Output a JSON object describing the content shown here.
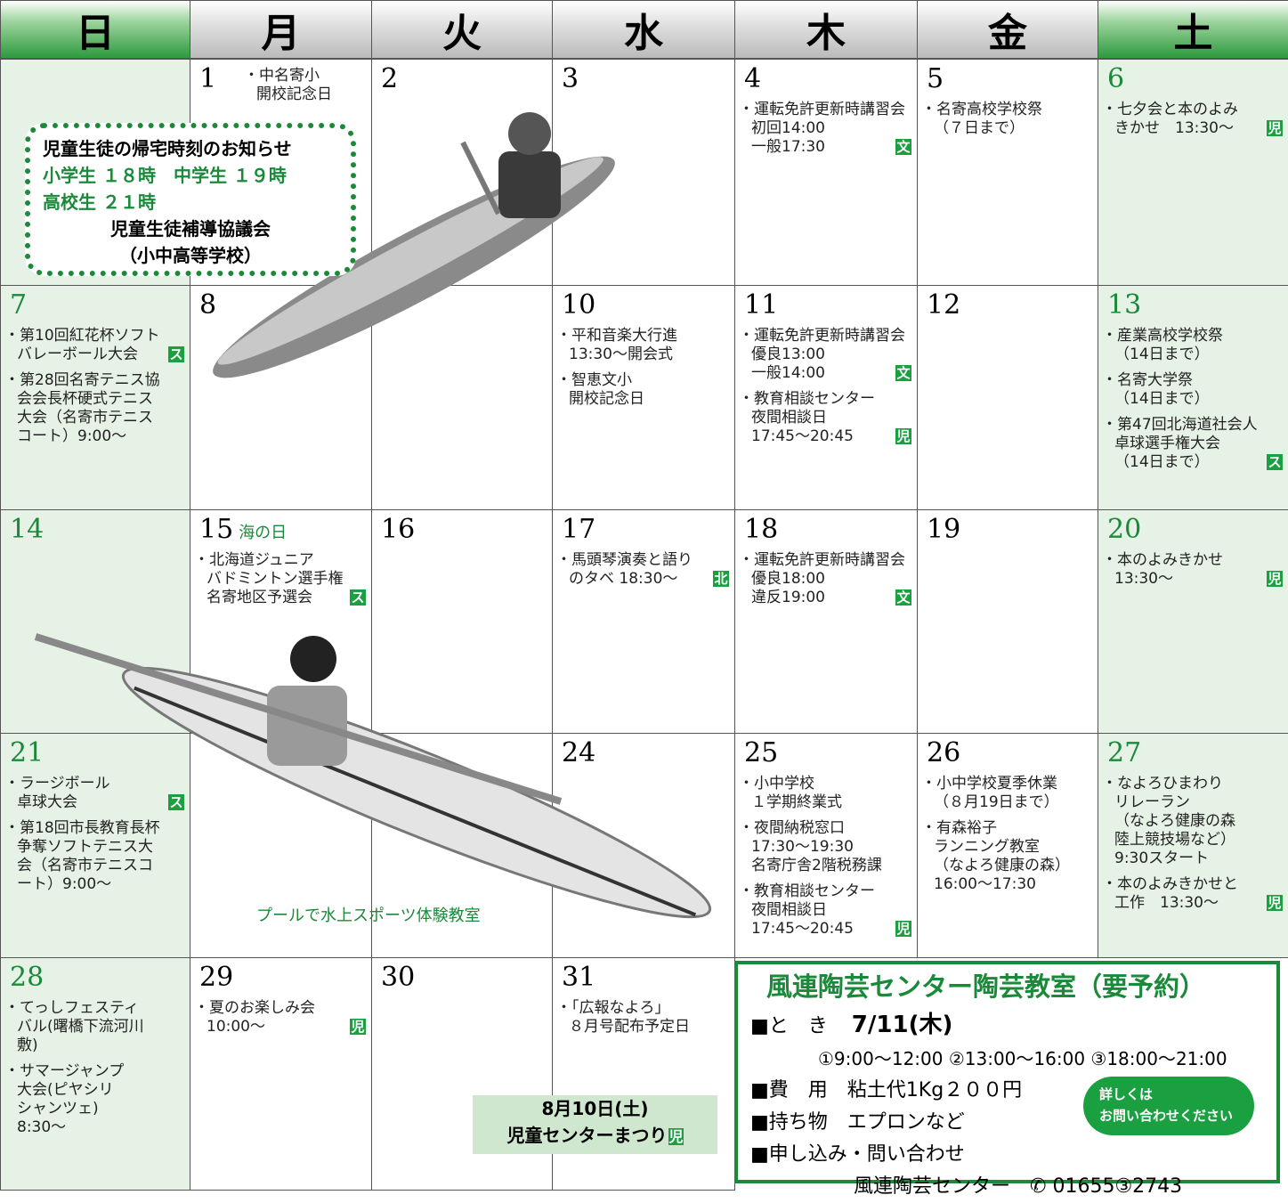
{
  "header": {
    "days": [
      "日",
      "月",
      "火",
      "水",
      "木",
      "金",
      "土"
    ]
  },
  "weeks": [
    [
      null,
      {
        "day": 1,
        "events": [
          {
            "lines": [
              "・中名寄小",
              "開校記念日"
            ]
          }
        ]
      },
      {
        "day": 2
      },
      {
        "day": 3
      },
      {
        "day": 4,
        "events": [
          {
            "lines": [
              "・運転免許更新時講習会",
              "初回14:00",
              "一般17:30"
            ],
            "tag": "文"
          }
        ]
      },
      {
        "day": 5,
        "events": [
          {
            "lines": [
              "・名寄高校学校祭",
              "（７日まで）"
            ]
          }
        ]
      },
      {
        "day": 6,
        "events": [
          {
            "lines": [
              "・七夕会と本のよみ",
              "きかせ　13:30～"
            ],
            "tag": "児"
          }
        ]
      }
    ],
    [
      {
        "day": 7,
        "events": [
          {
            "lines": [
              "・第10回紅花杯ソフト",
              "バレーボール大会"
            ],
            "tag": "ス"
          },
          {
            "lines": [
              "・第28回名寄テニス協",
              "会会長杯硬式テニス",
              "大会（名寄市テニス",
              "コート）9:00～"
            ]
          }
        ]
      },
      {
        "day": 8
      },
      null,
      {
        "day": 10,
        "events": [
          {
            "lines": [
              "・平和音楽大行進",
              "13:30～開会式"
            ]
          },
          {
            "lines": [
              "・智恵文小",
              "開校記念日"
            ]
          }
        ]
      },
      {
        "day": 11,
        "events": [
          {
            "lines": [
              "・運転免許更新時講習会",
              "優良13:00",
              "一般14:00"
            ],
            "tag": "文"
          },
          {
            "lines": [
              "・教育相談センター",
              "夜間相談日",
              "17:45～20:45"
            ],
            "tag": "児"
          }
        ]
      },
      {
        "day": 12
      },
      {
        "day": 13,
        "events": [
          {
            "lines": [
              "・産業高校学校祭",
              "（14日まで）"
            ]
          },
          {
            "lines": [
              "・名寄大学祭",
              "（14日まで）"
            ]
          },
          {
            "lines": [
              "・第47回北海道社会人",
              "卓球選手権大会",
              "（14日まで）"
            ],
            "tag": "ス"
          }
        ]
      }
    ],
    [
      {
        "day": 14
      },
      {
        "day": 15,
        "note": "海の日",
        "events": [
          {
            "lines": [
              "・北海道ジュニア",
              "バドミントン選手権",
              "名寄地区予選会"
            ],
            "tag": "ス"
          }
        ]
      },
      {
        "day": 16
      },
      {
        "day": 17,
        "events": [
          {
            "lines": [
              "・馬頭琴演奏と語り",
              "のタベ 18:30～"
            ],
            "tag": "北"
          }
        ]
      },
      {
        "day": 18,
        "events": [
          {
            "lines": [
              "・運転免許更新時講習会",
              "優良18:00",
              "違反19:00"
            ],
            "tag": "文"
          }
        ]
      },
      {
        "day": 19
      },
      {
        "day": 20,
        "events": [
          {
            "lines": [
              "・本のよみきかせ",
              "13:30～"
            ],
            "tag": "児"
          }
        ]
      }
    ],
    [
      {
        "day": 21,
        "events": [
          {
            "lines": [
              "・ラージボール",
              "卓球大会"
            ],
            "tag": "ス"
          },
          {
            "lines": [
              "・第18回市長教育長杯",
              "争奪ソフトテニス大",
              "会（名寄市テニスコ",
              "ート）9:00～"
            ]
          }
        ]
      },
      null,
      null,
      {
        "day": 24
      },
      {
        "day": 25,
        "events": [
          {
            "lines": [
              "・小中学校",
              "１学期終業式"
            ]
          },
          {
            "lines": [
              "・夜間納税窓口",
              "17:30～19:30",
              "名寄庁舎2階税務課"
            ]
          },
          {
            "lines": [
              "・教育相談センター",
              "夜間相談日",
              "17:45～20:45"
            ],
            "tag": "児"
          }
        ]
      },
      {
        "day": 26,
        "events": [
          {
            "lines": [
              "・小中学校夏季休業",
              "（８月19日まで）"
            ]
          },
          {
            "lines": [
              "・有森裕子",
              "ランニング教室",
              "（なよろ健康の森）",
              "16:00～17:30"
            ]
          }
        ]
      },
      {
        "day": 27,
        "events": [
          {
            "lines": [
              "・なよろひまわり",
              "リレーラン",
              "（なよろ健康の森",
              "陸上競技場など）",
              "9:30スタート"
            ]
          },
          {
            "lines": [
              "・本のよみきかせと",
              "工作　13:30～"
            ],
            "tag": "児"
          }
        ]
      }
    ],
    [
      {
        "day": 28,
        "events": [
          {
            "lines": [
              "・てっしフェスティ",
              "バル(曙橋下流河川",
              "敷)"
            ]
          },
          {
            "lines": [
              "・サマージャンプ",
              "大会(ピヤシリ",
              "シャンツェ)",
              "8:30～"
            ]
          }
        ]
      },
      {
        "day": 29,
        "events": [
          {
            "lines": [
              "・夏のお楽しみ会",
              "10:00～"
            ],
            "tag": "児"
          }
        ]
      },
      {
        "day": 30
      },
      {
        "day": 31,
        "events": [
          {
            "lines": [
              "・「広報なよろ」",
              "８月号配布予定日"
            ]
          }
        ]
      }
    ]
  ],
  "notice": {
    "title": "児童生徒の帰宅時刻のお知らせ",
    "line1": "小学生 １８時　中学生 １９時",
    "line2": "高校生 ２１時",
    "org": "児童生徒補導協議会",
    "org_sub": "（小中高等学校）"
  },
  "caption": "プールで水上スポーツ体験教室",
  "festival": {
    "date": "8月10日(土)",
    "name": "児童センターまつり",
    "tag": "児"
  },
  "pottery": {
    "title": "風連陶芸センター陶芸教室（要予約）",
    "when_label": "■と　き",
    "when": "7/11(木)",
    "times": "①9:00～12:00 ②13:00～16:00 ③18:00～21:00",
    "fee": "■費　用　粘土代1Kg２００円",
    "items": "■持ち物　エプロンなど",
    "apply": "■申し込み・問い合わせ",
    "contact": "風連陶芸センター",
    "phone": "01655③2743",
    "button": [
      "詳しくは",
      "お問い合わせください"
    ]
  }
}
